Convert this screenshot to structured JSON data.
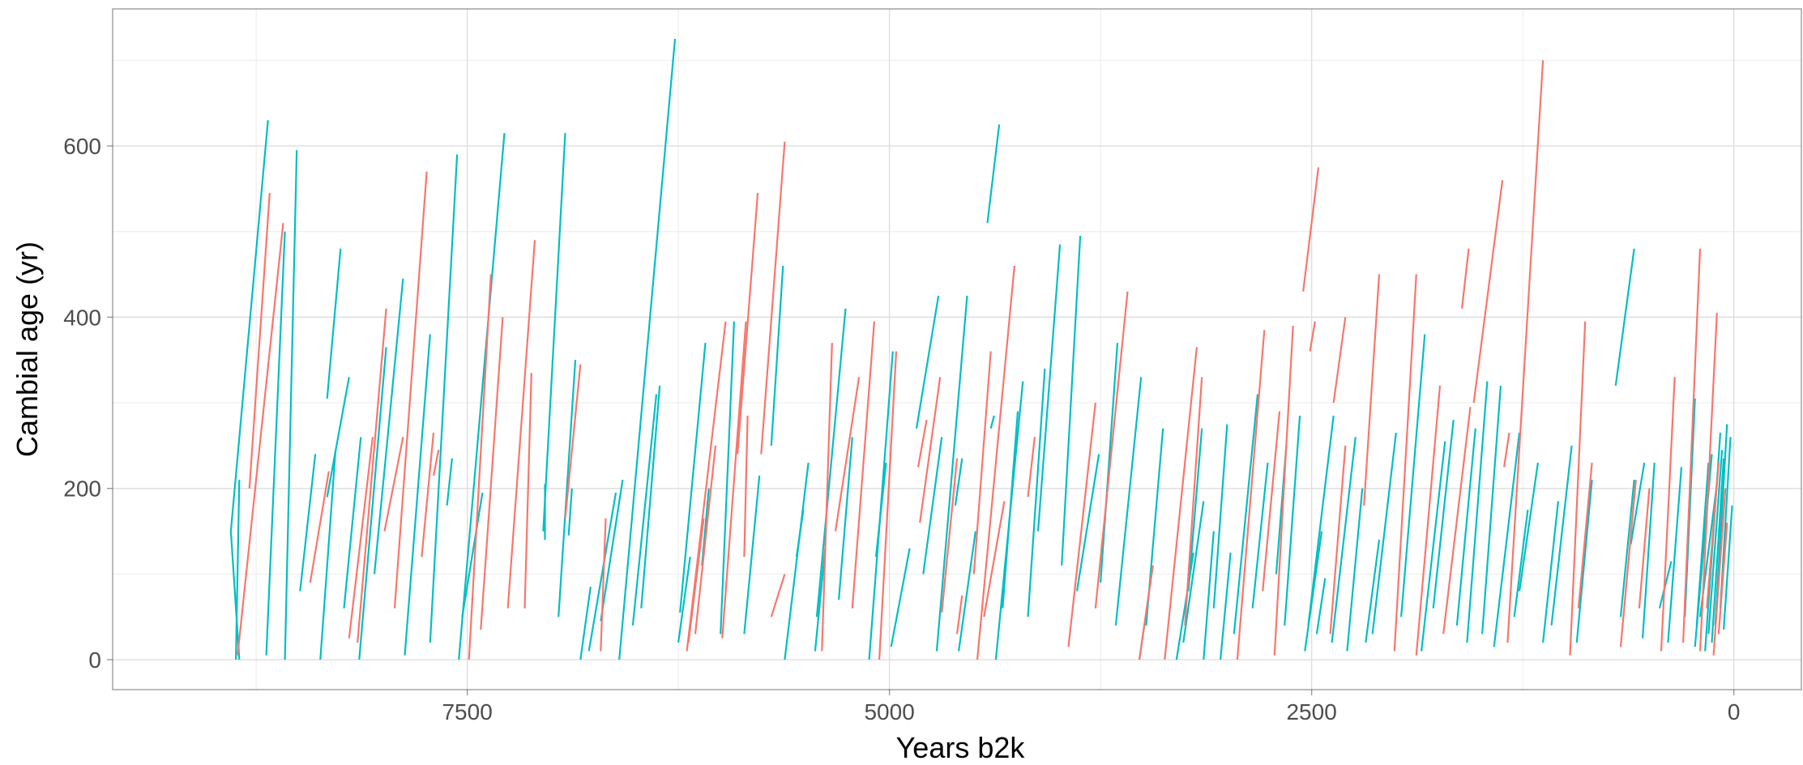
{
  "chart_data": {
    "type": "line",
    "title": "",
    "xlabel": "Years b2k",
    "ylabel": "Cambial age (yr)",
    "x_reversed": true,
    "xlim": [
      9600,
      -400
    ],
    "ylim": [
      -35,
      760
    ],
    "x_ticks": [
      7500,
      5000,
      2500,
      0
    ],
    "y_ticks": [
      0,
      200,
      400,
      600
    ],
    "x_minor_grid": [
      8750,
      6250,
      3750,
      1250
    ],
    "y_minor_grid": [
      100,
      300,
      500,
      700
    ],
    "grid": true,
    "legend": "none",
    "colors": {
      "teal": "#00BFC4",
      "salmon": "#F8766D"
    },
    "series": [
      {
        "color": "teal",
        "segments": [
          [
            8900,
            150,
            8680,
            630
          ],
          [
            8870,
            0,
            8850,
            210
          ],
          [
            8850,
            0,
            8900,
            150
          ],
          [
            8580,
            0,
            8510,
            595
          ],
          [
            8690,
            5,
            8580,
            500
          ],
          [
            8330,
            305,
            8250,
            480
          ],
          [
            8490,
            80,
            8400,
            240
          ],
          [
            8370,
            0,
            8280,
            245
          ],
          [
            8330,
            190,
            8200,
            330
          ],
          [
            8230,
            60,
            8130,
            260
          ],
          [
            8140,
            0,
            7980,
            365
          ],
          [
            8050,
            100,
            7880,
            445
          ],
          [
            7870,
            5,
            7720,
            380
          ],
          [
            7720,
            20,
            7560,
            590
          ],
          [
            7620,
            180,
            7590,
            235
          ],
          [
            7550,
            0,
            7280,
            615
          ],
          [
            7530,
            50,
            7410,
            195
          ],
          [
            7050,
            150,
            6920,
            615
          ],
          [
            7040,
            140,
            7040,
            205
          ],
          [
            6960,
            50,
            6860,
            350
          ],
          [
            6900,
            145,
            6880,
            200
          ],
          [
            6830,
            0,
            6770,
            85
          ],
          [
            6780,
            10,
            6620,
            195
          ],
          [
            6710,
            45,
            6580,
            210
          ],
          [
            6600,
            0,
            6270,
            725
          ],
          [
            6520,
            40,
            6380,
            310
          ],
          [
            6470,
            60,
            6360,
            320
          ],
          [
            6250,
            20,
            6180,
            120
          ],
          [
            6240,
            55,
            6090,
            370
          ],
          [
            6110,
            110,
            6070,
            200
          ],
          [
            6000,
            30,
            5920,
            395
          ],
          [
            5860,
            30,
            5770,
            215
          ],
          [
            5700,
            250,
            5630,
            460
          ],
          [
            5620,
            0,
            5480,
            230
          ],
          [
            5550,
            120,
            5510,
            175
          ],
          [
            5430,
            50,
            5260,
            410
          ],
          [
            5440,
            10,
            5380,
            130
          ],
          [
            5300,
            70,
            5220,
            260
          ],
          [
            5120,
            0,
            4980,
            360
          ],
          [
            5080,
            120,
            5020,
            230
          ],
          [
            4990,
            15,
            4880,
            130
          ],
          [
            4840,
            270,
            4710,
            425
          ],
          [
            4800,
            100,
            4690,
            260
          ],
          [
            4720,
            10,
            4540,
            425
          ],
          [
            4610,
            180,
            4570,
            235
          ],
          [
            4590,
            10,
            4490,
            150
          ],
          [
            4420,
            510,
            4350,
            625
          ],
          [
            4400,
            270,
            4380,
            285
          ],
          [
            4370,
            0,
            4210,
            325
          ],
          [
            4330,
            60,
            4240,
            290
          ],
          [
            4180,
            50,
            4080,
            340
          ],
          [
            4120,
            150,
            3990,
            485
          ],
          [
            3980,
            110,
            3870,
            495
          ],
          [
            3890,
            80,
            3760,
            240
          ],
          [
            3750,
            90,
            3650,
            370
          ],
          [
            3660,
            40,
            3510,
            330
          ],
          [
            3520,
            0,
            3440,
            110
          ],
          [
            3480,
            40,
            3380,
            270
          ],
          [
            3300,
            0,
            3200,
            125
          ],
          [
            3260,
            20,
            3140,
            185
          ],
          [
            3230,
            80,
            3150,
            270
          ],
          [
            3140,
            0,
            3080,
            150
          ],
          [
            3080,
            60,
            3000,
            275
          ],
          [
            3040,
            0,
            2980,
            125
          ],
          [
            2960,
            30,
            2820,
            310
          ],
          [
            2850,
            60,
            2760,
            230
          ],
          [
            2710,
            100,
            2650,
            250
          ],
          [
            2660,
            40,
            2570,
            285
          ],
          [
            2540,
            10,
            2440,
            150
          ],
          [
            2520,
            40,
            2370,
            285
          ],
          [
            2470,
            30,
            2420,
            95
          ],
          [
            2380,
            20,
            2240,
            260
          ],
          [
            2290,
            10,
            2200,
            200
          ],
          [
            2180,
            20,
            2100,
            140
          ],
          [
            2140,
            30,
            2000,
            265
          ],
          [
            1970,
            50,
            1830,
            380
          ],
          [
            1850,
            10,
            1710,
            255
          ],
          [
            1780,
            60,
            1660,
            280
          ],
          [
            1640,
            40,
            1530,
            270
          ],
          [
            1580,
            20,
            1460,
            325
          ],
          [
            1490,
            30,
            1380,
            320
          ],
          [
            1420,
            15,
            1270,
            265
          ],
          [
            1300,
            50,
            1220,
            175
          ],
          [
            1270,
            80,
            1160,
            230
          ],
          [
            1130,
            20,
            1040,
            185
          ],
          [
            1080,
            40,
            960,
            250
          ],
          [
            930,
            20,
            840,
            210
          ],
          [
            700,
            320,
            590,
            480
          ],
          [
            670,
            50,
            590,
            210
          ],
          [
            610,
            135,
            530,
            230
          ],
          [
            540,
            25,
            470,
            230
          ],
          [
            440,
            60,
            370,
            115
          ],
          [
            390,
            20,
            310,
            225
          ],
          [
            290,
            50,
            230,
            305
          ],
          [
            220,
            40,
            150,
            230
          ],
          [
            230,
            15,
            130,
            240
          ],
          [
            200,
            50,
            100,
            205
          ],
          [
            170,
            10,
            80,
            265
          ],
          [
            150,
            30,
            70,
            245
          ],
          [
            130,
            20,
            60,
            235
          ],
          [
            110,
            40,
            40,
            275
          ],
          [
            80,
            60,
            20,
            260
          ],
          [
            60,
            35,
            10,
            180
          ]
        ]
      },
      {
        "color": "salmon",
        "segments": [
          [
            8790,
            200,
            8670,
            545
          ],
          [
            8860,
            5,
            8590,
            510
          ],
          [
            8430,
            90,
            8320,
            220
          ],
          [
            8200,
            25,
            8060,
            260
          ],
          [
            8150,
            20,
            7980,
            410
          ],
          [
            7990,
            150,
            7880,
            260
          ],
          [
            7930,
            60,
            7740,
            570
          ],
          [
            7770,
            120,
            7700,
            265
          ],
          [
            7700,
            215,
            7670,
            245
          ],
          [
            7490,
            0,
            7360,
            450
          ],
          [
            7420,
            35,
            7290,
            400
          ],
          [
            7260,
            60,
            7100,
            490
          ],
          [
            7160,
            60,
            7120,
            335
          ],
          [
            6920,
            165,
            6830,
            345
          ],
          [
            6710,
            10,
            6680,
            165
          ],
          [
            6200,
            10,
            5970,
            395
          ],
          [
            6190,
            20,
            6100,
            165
          ],
          [
            6150,
            30,
            6030,
            250
          ],
          [
            5990,
            25,
            5850,
            395
          ],
          [
            5900,
            240,
            5780,
            545
          ],
          [
            5860,
            120,
            5840,
            285
          ],
          [
            5760,
            240,
            5620,
            605
          ],
          [
            5700,
            50,
            5620,
            100
          ],
          [
            5400,
            10,
            5340,
            370
          ],
          [
            5320,
            150,
            5180,
            330
          ],
          [
            5220,
            60,
            5090,
            395
          ],
          [
            5060,
            0,
            4960,
            360
          ],
          [
            4820,
            160,
            4700,
            330
          ],
          [
            4830,
            225,
            4780,
            280
          ],
          [
            4690,
            55,
            4600,
            235
          ],
          [
            4600,
            30,
            4570,
            75
          ],
          [
            4500,
            100,
            4400,
            360
          ],
          [
            4480,
            0,
            4260,
            460
          ],
          [
            4440,
            50,
            4320,
            185
          ],
          [
            4180,
            190,
            4140,
            260
          ],
          [
            3940,
            15,
            3780,
            300
          ],
          [
            3780,
            60,
            3590,
            430
          ],
          [
            3520,
            0,
            3440,
            110
          ],
          [
            3370,
            0,
            3180,
            365
          ],
          [
            3250,
            40,
            3150,
            330
          ],
          [
            2940,
            0,
            2780,
            385
          ],
          [
            2790,
            80,
            2690,
            290
          ],
          [
            2720,
            5,
            2610,
            390
          ],
          [
            2550,
            430,
            2460,
            575
          ],
          [
            2510,
            360,
            2480,
            395
          ],
          [
            2390,
            30,
            2300,
            250
          ],
          [
            2370,
            300,
            2300,
            400
          ],
          [
            2190,
            180,
            2100,
            450
          ],
          [
            2010,
            10,
            1880,
            450
          ],
          [
            1880,
            5,
            1740,
            320
          ],
          [
            1720,
            30,
            1560,
            295
          ],
          [
            1610,
            410,
            1570,
            480
          ],
          [
            1540,
            300,
            1370,
            560
          ],
          [
            1360,
            225,
            1330,
            265
          ],
          [
            1340,
            20,
            1130,
            700
          ],
          [
            970,
            5,
            880,
            395
          ],
          [
            920,
            60,
            840,
            230
          ],
          [
            670,
            15,
            580,
            210
          ],
          [
            560,
            60,
            500,
            200
          ],
          [
            430,
            10,
            350,
            330
          ],
          [
            300,
            20,
            200,
            480
          ],
          [
            200,
            10,
            100,
            405
          ],
          [
            160,
            60,
            90,
            230
          ],
          [
            120,
            5,
            50,
            200
          ],
          [
            90,
            30,
            40,
            160
          ]
        ]
      }
    ]
  }
}
